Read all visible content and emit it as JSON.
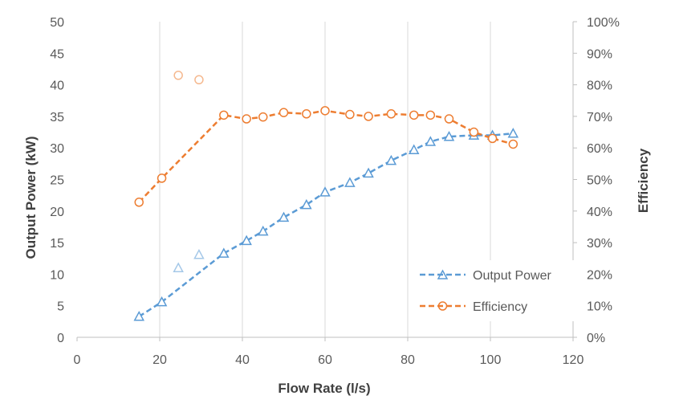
{
  "chart_data": {
    "type": "line",
    "xlabel": "Flow Rate (l/s)",
    "ylabel": "Output Power (kW)",
    "y2label": "Efficiency",
    "xlim": [
      0,
      120
    ],
    "ylim": [
      0,
      50
    ],
    "y2lim": [
      0,
      100
    ],
    "xticks": [
      "0",
      "20",
      "40",
      "60",
      "80",
      "100",
      "120"
    ],
    "yticks": [
      "0",
      "5",
      "10",
      "15",
      "20",
      "25",
      "30",
      "35",
      "40",
      "45",
      "50"
    ],
    "y2ticks": [
      "0%",
      "10%",
      "20%",
      "30%",
      "40%",
      "50%",
      "60%",
      "70%",
      "80%",
      "90%",
      "100%"
    ],
    "grid": "vertical",
    "legend_position": "bottom-right",
    "series": [
      {
        "name": "Output Power",
        "axis": "left",
        "color": "#5b9bd5",
        "marker": "triangle",
        "line": "dashed",
        "x": [
          15,
          20.5,
          35.5,
          41,
          45,
          50,
          55.5,
          60,
          66,
          70.5,
          76,
          81.5,
          85.5,
          90,
          96,
          100.5,
          105.5
        ],
        "y": [
          3.3,
          5.6,
          13.3,
          15.3,
          16.8,
          19,
          21,
          23,
          24.5,
          26,
          28,
          29.7,
          31,
          31.8,
          32,
          32,
          32.3
        ],
        "outliers": {
          "x": [
            24.5,
            29.5
          ],
          "y": [
            11,
            13.1
          ]
        }
      },
      {
        "name": "Efficiency",
        "axis": "right",
        "color": "#ed7d31",
        "marker": "circle",
        "line": "dashed",
        "x": [
          15,
          20.5,
          35.5,
          41,
          45,
          50,
          55.5,
          60,
          66,
          70.5,
          76,
          81.5,
          85.5,
          90,
          96,
          100.5,
          105.5
        ],
        "y": [
          42.8,
          50.4,
          70.4,
          69.2,
          69.8,
          71.2,
          70.8,
          71.8,
          70.6,
          70.0,
          70.8,
          70.4,
          70.4,
          69.2,
          65.0,
          63.0,
          61.2
        ],
        "outliers": {
          "x": [
            24.5,
            29.5
          ],
          "y": [
            83.0,
            81.6
          ]
        }
      }
    ]
  }
}
